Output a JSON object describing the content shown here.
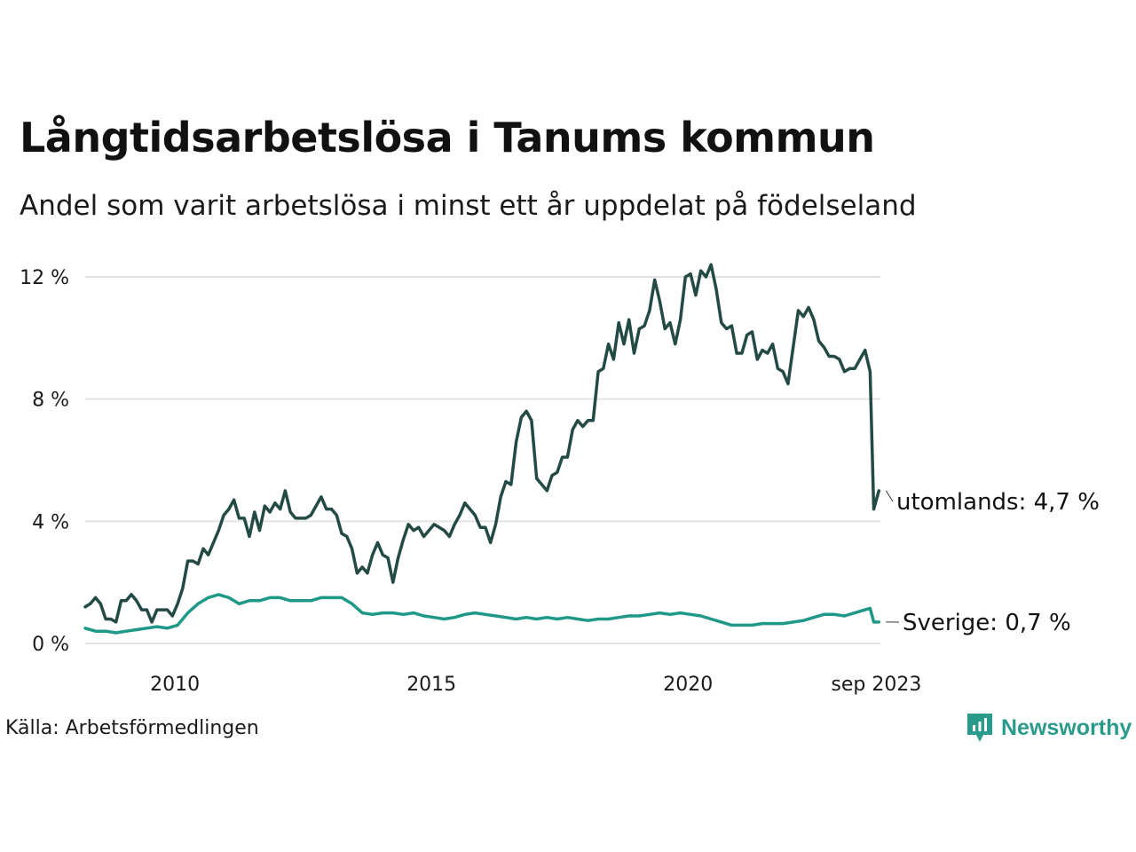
{
  "title": "Långtidsarbetslösa i Tanums kommun",
  "subtitle": "Andel som varit arbetslösa i minst ett år uppdelat på födelseland",
  "source": "Källa: Arbetsförmedlingen",
  "brand": "Newsworthy",
  "chart_data": {
    "type": "line",
    "ylim": [
      0,
      12
    ],
    "xlim": [
      2008.25,
      2023.75
    ],
    "y_ticks": [
      0,
      4,
      8,
      12
    ],
    "y_tick_labels": [
      "0 %",
      "4 %",
      "8 %",
      "12 %"
    ],
    "x_ticks": [
      2010,
      2015,
      2020,
      2023.67
    ],
    "x_tick_labels": [
      "2010",
      "2015",
      "2020",
      "sep 2023"
    ],
    "grid": true,
    "series": [
      {
        "name": "utomlands",
        "color": "#244a45",
        "end_label": "utomlands: 4,7 %",
        "points": [
          [
            2008.25,
            1.2
          ],
          [
            2008.35,
            1.3
          ],
          [
            2008.45,
            1.5
          ],
          [
            2008.55,
            1.3
          ],
          [
            2008.65,
            0.8
          ],
          [
            2008.75,
            0.8
          ],
          [
            2008.85,
            0.7
          ],
          [
            2008.95,
            1.4
          ],
          [
            2009.05,
            1.4
          ],
          [
            2009.15,
            1.6
          ],
          [
            2009.25,
            1.4
          ],
          [
            2009.35,
            1.1
          ],
          [
            2009.45,
            1.1
          ],
          [
            2009.55,
            0.7
          ],
          [
            2009.65,
            1.1
          ],
          [
            2009.75,
            1.1
          ],
          [
            2009.85,
            1.1
          ],
          [
            2009.95,
            0.9
          ],
          [
            2010.05,
            1.3
          ],
          [
            2010.15,
            1.8
          ],
          [
            2010.25,
            2.7
          ],
          [
            2010.35,
            2.7
          ],
          [
            2010.45,
            2.6
          ],
          [
            2010.55,
            3.1
          ],
          [
            2010.65,
            2.9
          ],
          [
            2010.75,
            3.3
          ],
          [
            2010.85,
            3.7
          ],
          [
            2010.95,
            4.2
          ],
          [
            2011.05,
            4.4
          ],
          [
            2011.15,
            4.7
          ],
          [
            2011.25,
            4.1
          ],
          [
            2011.35,
            4.1
          ],
          [
            2011.45,
            3.5
          ],
          [
            2011.55,
            4.3
          ],
          [
            2011.65,
            3.7
          ],
          [
            2011.75,
            4.5
          ],
          [
            2011.85,
            4.3
          ],
          [
            2011.95,
            4.6
          ],
          [
            2012.05,
            4.4
          ],
          [
            2012.15,
            5.0
          ],
          [
            2012.25,
            4.3
          ],
          [
            2012.35,
            4.1
          ],
          [
            2012.45,
            4.1
          ],
          [
            2012.55,
            4.1
          ],
          [
            2012.65,
            4.2
          ],
          [
            2012.75,
            4.5
          ],
          [
            2012.85,
            4.8
          ],
          [
            2012.95,
            4.4
          ],
          [
            2013.05,
            4.4
          ],
          [
            2013.15,
            4.2
          ],
          [
            2013.25,
            3.6
          ],
          [
            2013.35,
            3.5
          ],
          [
            2013.45,
            3.1
          ],
          [
            2013.55,
            2.3
          ],
          [
            2013.65,
            2.5
          ],
          [
            2013.75,
            2.3
          ],
          [
            2013.85,
            2.9
          ],
          [
            2013.95,
            3.3
          ],
          [
            2014.05,
            2.9
          ],
          [
            2014.15,
            2.8
          ],
          [
            2014.25,
            2.0
          ],
          [
            2014.35,
            2.8
          ],
          [
            2014.45,
            3.4
          ],
          [
            2014.55,
            3.9
          ],
          [
            2014.65,
            3.7
          ],
          [
            2014.75,
            3.8
          ],
          [
            2014.85,
            3.5
          ],
          [
            2014.95,
            3.7
          ],
          [
            2015.05,
            3.9
          ],
          [
            2015.15,
            3.8
          ],
          [
            2015.25,
            3.7
          ],
          [
            2015.35,
            3.5
          ],
          [
            2015.45,
            3.9
          ],
          [
            2015.55,
            4.2
          ],
          [
            2015.65,
            4.6
          ],
          [
            2015.75,
            4.4
          ],
          [
            2015.85,
            4.2
          ],
          [
            2015.95,
            3.8
          ],
          [
            2016.05,
            3.8
          ],
          [
            2016.15,
            3.3
          ],
          [
            2016.25,
            3.9
          ],
          [
            2016.35,
            4.8
          ],
          [
            2016.45,
            5.3
          ],
          [
            2016.55,
            5.2
          ],
          [
            2016.65,
            6.6
          ],
          [
            2016.75,
            7.4
          ],
          [
            2016.85,
            7.6
          ],
          [
            2016.95,
            7.3
          ],
          [
            2017.05,
            5.4
          ],
          [
            2017.15,
            5.2
          ],
          [
            2017.25,
            5.0
          ],
          [
            2017.35,
            5.5
          ],
          [
            2017.45,
            5.6
          ],
          [
            2017.55,
            6.1
          ],
          [
            2017.65,
            6.1
          ],
          [
            2017.75,
            7.0
          ],
          [
            2017.85,
            7.3
          ],
          [
            2017.95,
            7.1
          ],
          [
            2018.05,
            7.3
          ],
          [
            2018.15,
            7.3
          ],
          [
            2018.25,
            8.9
          ],
          [
            2018.35,
            9.0
          ],
          [
            2018.45,
            9.8
          ],
          [
            2018.55,
            9.3
          ],
          [
            2018.65,
            10.5
          ],
          [
            2018.75,
            9.8
          ],
          [
            2018.85,
            10.6
          ],
          [
            2018.95,
            9.5
          ],
          [
            2019.05,
            10.3
          ],
          [
            2019.15,
            10.4
          ],
          [
            2019.25,
            10.9
          ],
          [
            2019.35,
            11.9
          ],
          [
            2019.45,
            11.2
          ],
          [
            2019.55,
            10.3
          ],
          [
            2019.65,
            10.5
          ],
          [
            2019.75,
            9.8
          ],
          [
            2019.85,
            10.6
          ],
          [
            2019.95,
            12.0
          ],
          [
            2020.05,
            12.1
          ],
          [
            2020.15,
            11.4
          ],
          [
            2020.25,
            12.2
          ],
          [
            2020.35,
            12.0
          ],
          [
            2020.45,
            12.4
          ],
          [
            2020.55,
            11.6
          ],
          [
            2020.65,
            10.5
          ],
          [
            2020.75,
            10.3
          ],
          [
            2020.85,
            10.4
          ],
          [
            2020.95,
            9.5
          ],
          [
            2021.05,
            9.5
          ],
          [
            2021.15,
            10.1
          ],
          [
            2021.25,
            10.2
          ],
          [
            2021.35,
            9.3
          ],
          [
            2021.45,
            9.6
          ],
          [
            2021.55,
            9.5
          ],
          [
            2021.65,
            9.8
          ],
          [
            2021.75,
            9.0
          ],
          [
            2021.85,
            8.9
          ],
          [
            2021.95,
            8.5
          ],
          [
            2022.05,
            9.7
          ],
          [
            2022.15,
            10.9
          ],
          [
            2022.25,
            10.7
          ],
          [
            2022.35,
            11.0
          ],
          [
            2022.45,
            10.6
          ],
          [
            2022.55,
            9.9
          ],
          [
            2022.65,
            9.7
          ],
          [
            2022.75,
            9.4
          ],
          [
            2022.85,
            9.4
          ],
          [
            2022.95,
            9.3
          ],
          [
            2023.05,
            8.9
          ],
          [
            2023.15,
            9.0
          ],
          [
            2023.25,
            9.0
          ],
          [
            2023.35,
            9.3
          ],
          [
            2023.45,
            9.6
          ],
          [
            2023.55,
            8.9
          ],
          [
            2023.62,
            4.4
          ],
          [
            2023.67,
            4.7
          ],
          [
            2023.72,
            5.0
          ]
        ]
      },
      {
        "name": "Sverige",
        "color": "#1f9987",
        "end_label": "Sverige: 0,7 %",
        "points": [
          [
            2008.25,
            0.5
          ],
          [
            2008.45,
            0.4
          ],
          [
            2008.65,
            0.4
          ],
          [
            2008.85,
            0.35
          ],
          [
            2009.05,
            0.4
          ],
          [
            2009.25,
            0.45
          ],
          [
            2009.45,
            0.5
          ],
          [
            2009.65,
            0.55
          ],
          [
            2009.85,
            0.5
          ],
          [
            2010.05,
            0.6
          ],
          [
            2010.25,
            1.0
          ],
          [
            2010.45,
            1.3
          ],
          [
            2010.65,
            1.5
          ],
          [
            2010.85,
            1.6
          ],
          [
            2011.05,
            1.5
          ],
          [
            2011.25,
            1.3
          ],
          [
            2011.45,
            1.4
          ],
          [
            2011.65,
            1.4
          ],
          [
            2011.85,
            1.5
          ],
          [
            2012.05,
            1.5
          ],
          [
            2012.25,
            1.4
          ],
          [
            2012.45,
            1.4
          ],
          [
            2012.65,
            1.4
          ],
          [
            2012.85,
            1.5
          ],
          [
            2013.05,
            1.5
          ],
          [
            2013.25,
            1.5
          ],
          [
            2013.45,
            1.3
          ],
          [
            2013.65,
            1.0
          ],
          [
            2013.85,
            0.95
          ],
          [
            2014.05,
            1.0
          ],
          [
            2014.25,
            1.0
          ],
          [
            2014.45,
            0.95
          ],
          [
            2014.65,
            1.0
          ],
          [
            2014.85,
            0.9
          ],
          [
            2015.05,
            0.85
          ],
          [
            2015.25,
            0.8
          ],
          [
            2015.45,
            0.85
          ],
          [
            2015.65,
            0.95
          ],
          [
            2015.85,
            1.0
          ],
          [
            2016.05,
            0.95
          ],
          [
            2016.25,
            0.9
          ],
          [
            2016.45,
            0.85
          ],
          [
            2016.65,
            0.8
          ],
          [
            2016.85,
            0.85
          ],
          [
            2017.05,
            0.8
          ],
          [
            2017.25,
            0.85
          ],
          [
            2017.45,
            0.8
          ],
          [
            2017.65,
            0.85
          ],
          [
            2017.85,
            0.8
          ],
          [
            2018.05,
            0.75
          ],
          [
            2018.25,
            0.8
          ],
          [
            2018.45,
            0.8
          ],
          [
            2018.65,
            0.85
          ],
          [
            2018.85,
            0.9
          ],
          [
            2019.05,
            0.9
          ],
          [
            2019.25,
            0.95
          ],
          [
            2019.45,
            1.0
          ],
          [
            2019.65,
            0.95
          ],
          [
            2019.85,
            1.0
          ],
          [
            2020.05,
            0.95
          ],
          [
            2020.25,
            0.9
          ],
          [
            2020.45,
            0.8
          ],
          [
            2020.65,
            0.7
          ],
          [
            2020.85,
            0.6
          ],
          [
            2021.05,
            0.6
          ],
          [
            2021.25,
            0.6
          ],
          [
            2021.45,
            0.65
          ],
          [
            2021.65,
            0.65
          ],
          [
            2021.85,
            0.65
          ],
          [
            2022.05,
            0.7
          ],
          [
            2022.25,
            0.75
          ],
          [
            2022.45,
            0.85
          ],
          [
            2022.65,
            0.95
          ],
          [
            2022.85,
            0.95
          ],
          [
            2023.05,
            0.9
          ],
          [
            2023.25,
            1.0
          ],
          [
            2023.45,
            1.1
          ],
          [
            2023.55,
            1.15
          ],
          [
            2023.62,
            0.7
          ],
          [
            2023.67,
            0.7
          ],
          [
            2023.72,
            0.7
          ]
        ]
      }
    ]
  }
}
